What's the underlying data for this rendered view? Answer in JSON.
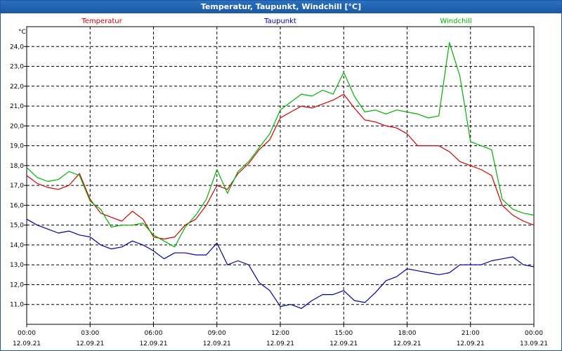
{
  "window": {
    "title": "Temperatur, Taupunkt, Windchill [°C]"
  },
  "chart_data": {
    "type": "line",
    "unit": "°C",
    "ylim": [
      10.0,
      25.0
    ],
    "yticks": [
      "11,0",
      "12,0",
      "13,0",
      "14,0",
      "15,0",
      "16,0",
      "17,0",
      "18,0",
      "19,0",
      "20,0",
      "21,0",
      "22,0",
      "23,0",
      "24,0"
    ],
    "xticks": [
      {
        "time": "00:00",
        "date": "12.09.21"
      },
      {
        "time": "03:00",
        "date": "12.09.21"
      },
      {
        "time": "06:00",
        "date": "12.09.21"
      },
      {
        "time": "09:00",
        "date": "12.09.21"
      },
      {
        "time": "12:00",
        "date": "12.09.21"
      },
      {
        "time": "15:00",
        "date": "12.09.21"
      },
      {
        "time": "18:00",
        "date": "12.09.21"
      },
      {
        "time": "21:00",
        "date": "12.09.21"
      },
      {
        "time": "00:00",
        "date": "13.09.21"
      }
    ],
    "x_hours": [
      0,
      0.5,
      1,
      1.5,
      2,
      2.5,
      3,
      3.5,
      4,
      4.5,
      5,
      5.5,
      6,
      6.5,
      7,
      7.5,
      8,
      8.5,
      9,
      9.5,
      10,
      10.5,
      11,
      11.5,
      12,
      12.5,
      13,
      13.5,
      14,
      14.5,
      15,
      15.5,
      16,
      16.5,
      17,
      17.5,
      18,
      18.5,
      19,
      19.5,
      20,
      20.5,
      21,
      21.5,
      22,
      22.5,
      23,
      23.5,
      24
    ],
    "grid": true,
    "legend": "top",
    "series": [
      {
        "name": "Temperatur",
        "color": "#cc0000",
        "values": [
          17.5,
          17.1,
          16.9,
          16.8,
          17.0,
          17.6,
          16.3,
          15.6,
          15.4,
          15.2,
          15.7,
          15.3,
          14.4,
          14.3,
          14.4,
          15.0,
          15.3,
          16.0,
          17.0,
          16.8,
          17.6,
          18.1,
          18.8,
          19.3,
          20.4,
          20.7,
          21.0,
          20.9,
          21.1,
          21.3,
          21.6,
          20.9,
          20.3,
          20.2,
          20.0,
          19.9,
          19.6,
          19.0,
          19.0,
          19.0,
          18.7,
          18.2,
          18.0,
          17.8,
          17.5,
          16.0,
          15.5,
          15.2,
          15.0
        ]
      },
      {
        "name": "Taupunkt",
        "color": "#0000a0",
        "values": [
          15.3,
          15.0,
          14.8,
          14.6,
          14.7,
          14.5,
          14.4,
          14.0,
          13.8,
          13.9,
          14.2,
          14.0,
          13.7,
          13.3,
          13.6,
          13.6,
          13.5,
          13.5,
          14.1,
          13.0,
          13.2,
          13.0,
          12.1,
          11.7,
          10.9,
          11.0,
          10.8,
          11.2,
          11.5,
          11.5,
          11.7,
          11.2,
          11.1,
          11.6,
          12.2,
          12.4,
          12.8,
          12.7,
          12.6,
          12.5,
          12.6,
          13.0,
          13.0,
          13.0,
          13.2,
          13.3,
          13.4,
          13.0,
          12.9
        ]
      },
      {
        "name": "Windchill",
        "color": "#00b000",
        "values": [
          17.9,
          17.4,
          17.2,
          17.3,
          17.7,
          17.5,
          16.2,
          15.8,
          14.9,
          15.0,
          15.0,
          15.1,
          14.5,
          14.2,
          13.9,
          14.9,
          15.5,
          16.3,
          17.8,
          16.6,
          17.7,
          18.2,
          18.9,
          19.6,
          20.8,
          21.2,
          21.6,
          21.5,
          21.8,
          21.6,
          22.7,
          21.5,
          20.7,
          20.8,
          20.6,
          20.8,
          20.7,
          20.6,
          20.4,
          20.5,
          24.2,
          22.5,
          19.2,
          19.0,
          18.8,
          16.3,
          15.8,
          15.6,
          15.5
        ]
      }
    ]
  }
}
